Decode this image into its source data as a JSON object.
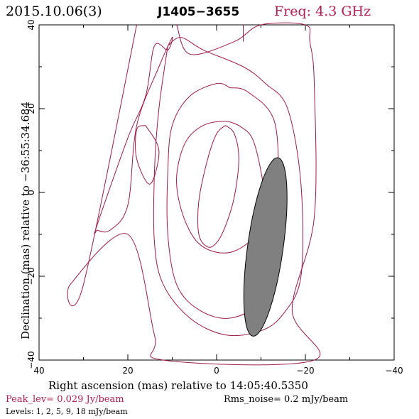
{
  "header": {
    "date": "2015.10.06(3)",
    "source": "J1405−3655",
    "freq": "Freq: 4.3 GHz"
  },
  "footer": {
    "peak": "Peak_lev=  0.029 Jy/beam",
    "rms": "Rms_noise=   0.2 mJy/beam",
    "levels": "Levels:   1,   2,   5,   9,  18 mJy/beam"
  },
  "colors": {
    "contour": "#9b1b45",
    "accent": "#b0204f",
    "beam_fill": "#808080"
  },
  "chart_data": {
    "type": "contour",
    "xlabel": "Right ascension (mas) relative to 14:05:40.5350",
    "ylabel": "Declination (mas) relative to −36:55:34.684",
    "xlim": [
      40,
      -40
    ],
    "ylim": [
      -40,
      40
    ],
    "xticks": [
      40,
      20,
      0,
      -20,
      -40
    ],
    "yticks": [
      -40,
      -20,
      0,
      20,
      40
    ],
    "xtick_labels": [
      "40",
      "20",
      "0",
      "−20",
      "−40"
    ],
    "ytick_labels": [
      "−40",
      "−20",
      "0",
      "20",
      "40"
    ],
    "contour_levels_mjy": [
      1,
      2,
      5,
      9,
      18
    ],
    "peak_jy_per_beam": 0.029,
    "rms_mjy_per_beam": 0.2,
    "contours": [
      {
        "level": 1,
        "points": [
          [
            18,
            40
          ],
          [
            30,
            -22
          ],
          [
            33,
            -22
          ],
          [
            20,
            -10
          ],
          [
            14,
            -34
          ],
          [
            12,
            -40
          ],
          [
            -22,
            -40
          ],
          [
            -17,
            -28
          ],
          [
            -22,
            -6
          ],
          [
            -22,
            26
          ],
          [
            -21,
            36
          ],
          [
            -20,
            40
          ],
          [
            -10,
            40
          ],
          [
            -4,
            36
          ],
          [
            6,
            33
          ],
          [
            9,
            40
          ]
        ]
      },
      {
        "level": 1,
        "points": [
          [
            -6,
            40
          ],
          [
            -6,
            36
          ]
        ]
      },
      {
        "level": 2,
        "points": [
          [
            27,
            -9
          ],
          [
            24,
            -9
          ],
          [
            20,
            -3
          ],
          [
            18,
            16
          ],
          [
            13,
            30
          ],
          [
            10,
            37
          ],
          [
            11,
            34
          ],
          [
            14,
            35
          ],
          [
            16,
            23
          ],
          [
            20,
            13
          ],
          [
            27,
            -8
          ],
          [
            27,
            -9
          ]
        ],
        "open": true
      },
      {
        "level": 2,
        "points": [
          [
            11,
            35
          ],
          [
            8,
            37
          ],
          [
            3,
            34
          ],
          [
            -6,
            30
          ],
          [
            -11,
            26
          ],
          [
            -16,
            20
          ],
          [
            -19,
            2
          ],
          [
            -19,
            -20
          ],
          [
            -15,
            -29
          ],
          [
            -10,
            -33
          ],
          [
            -2,
            -34
          ],
          [
            6,
            -30
          ],
          [
            12,
            -22
          ],
          [
            14,
            -12
          ],
          [
            14,
            5
          ],
          [
            13,
            20
          ],
          [
            11,
            35
          ]
        ]
      },
      {
        "level": 5,
        "points": [
          [
            -3,
            25
          ],
          [
            -7,
            24
          ],
          [
            -13,
            17
          ],
          [
            -14,
            0
          ],
          [
            -14,
            -16
          ],
          [
            -10,
            -26
          ],
          [
            -3,
            -30
          ],
          [
            4,
            -28
          ],
          [
            9,
            -22
          ],
          [
            11,
            -10
          ],
          [
            11,
            5
          ],
          [
            10,
            16
          ],
          [
            6,
            23
          ],
          [
            0,
            26
          ],
          [
            -3,
            25
          ]
        ]
      },
      {
        "level": 9,
        "points": [
          [
            -5,
            16
          ],
          [
            -8,
            13
          ],
          [
            -10,
            5
          ],
          [
            -11,
            -4
          ],
          [
            -9,
            -10
          ],
          [
            -4,
            -14
          ],
          [
            1,
            -14
          ],
          [
            5,
            -11
          ],
          [
            8,
            -4
          ],
          [
            9,
            4
          ],
          [
            7,
            12
          ],
          [
            3,
            16
          ],
          [
            -2,
            17
          ],
          [
            -5,
            16
          ]
        ]
      },
      {
        "level": 18,
        "points": [
          [
            -2,
            16
          ],
          [
            -4,
            14
          ],
          [
            -5,
            8
          ],
          [
            -4,
            -1
          ],
          [
            -2,
            -8
          ],
          [
            0,
            -12
          ],
          [
            2,
            -13
          ],
          [
            4,
            -10
          ],
          [
            4,
            -2
          ],
          [
            2,
            8
          ],
          [
            0,
            14
          ],
          [
            -2,
            16
          ]
        ]
      },
      {
        "level": 18,
        "points": [
          [
            16,
            16
          ],
          [
            13,
            10
          ],
          [
            15,
            2
          ],
          [
            18,
            8
          ],
          [
            18,
            15
          ],
          [
            16,
            16
          ]
        ]
      }
    ],
    "beam": {
      "center": [
        -11,
        -13
      ],
      "major_mas": 43,
      "minor_mas": 8,
      "pa_deg": 8
    }
  }
}
